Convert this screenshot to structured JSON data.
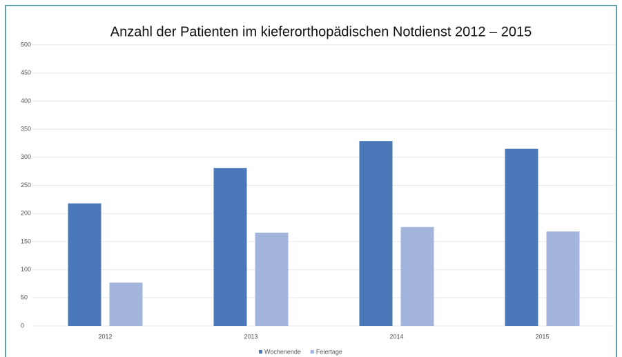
{
  "chart_data": {
    "type": "bar",
    "title": "Anzahl der Patienten im kieferorthopädischen Notdienst 2012 – 2015",
    "categories": [
      "2012",
      "2013",
      "2014",
      "2015"
    ],
    "series": [
      {
        "name": "Wochenende",
        "color": "#4a78b8",
        "values": [
          218,
          281,
          329,
          315
        ]
      },
      {
        "name": "Feiertage",
        "color": "#a3b5dc",
        "values": [
          77,
          166,
          176,
          168
        ]
      }
    ],
    "ylim": [
      0,
      500
    ],
    "yticks": [
      0,
      50,
      100,
      150,
      200,
      250,
      300,
      350,
      400,
      450,
      500
    ],
    "grid": true,
    "legend": "bottom"
  }
}
